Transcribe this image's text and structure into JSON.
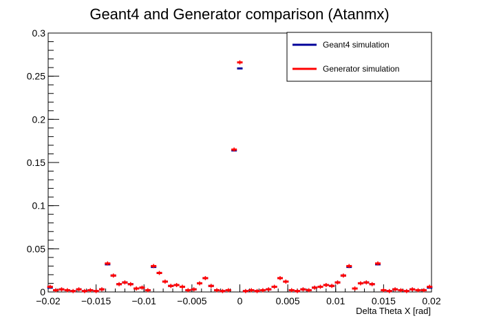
{
  "chart_data": {
    "type": "scatter",
    "title": "Geant4 and Generator comparison (Atanmx)",
    "xlabel": "Delta Theta X [rad]",
    "ylabel": "",
    "xlim": [
      -0.02,
      0.02
    ],
    "ylim": [
      0,
      0.3
    ],
    "x_ticks": [
      "−0.02",
      "−0.015",
      "−0.01",
      "−0.005",
      "0",
      "0.005",
      "0.01",
      "0.015",
      "0.02"
    ],
    "y_ticks": [
      "0",
      "0.05",
      "0.1",
      "0.15",
      "0.2",
      "0.25",
      "0.3"
    ],
    "grid": false,
    "legend_position": "top-right",
    "series": [
      {
        "name": "Geant4 simulation",
        "color": "#000099",
        "x": [
          -0.0198,
          -0.0192,
          -0.0186,
          -0.018,
          -0.0174,
          -0.0168,
          -0.0162,
          -0.0156,
          -0.015,
          -0.0144,
          -0.0138,
          -0.0132,
          -0.0126,
          -0.012,
          -0.0114,
          -0.0108,
          -0.0102,
          -0.0096,
          -0.009,
          -0.0084,
          -0.0078,
          -0.0072,
          -0.0066,
          -0.006,
          -0.0054,
          -0.0048,
          -0.0042,
          -0.0036,
          -0.003,
          -0.0024,
          -0.0018,
          -0.0012,
          -0.0006,
          0.0,
          0.0006,
          0.0012,
          0.0018,
          0.0024,
          0.003,
          0.0036,
          0.0042,
          0.0048,
          0.0054,
          0.006,
          0.0066,
          0.0072,
          0.0078,
          0.0084,
          0.009,
          0.0096,
          0.0102,
          0.0108,
          0.0114,
          0.012,
          0.0126,
          0.0132,
          0.0138,
          0.0144,
          0.015,
          0.0156,
          0.0162,
          0.0168,
          0.0174,
          0.018,
          0.0186,
          0.0192,
          0.0198
        ],
        "y": [
          0.005,
          0.002,
          0.003,
          0.002,
          0.001,
          0.003,
          0.001,
          0.002,
          0.001,
          0.003,
          0.032,
          0.019,
          0.009,
          0.011,
          0.009,
          0.004,
          0.005,
          0.002,
          0.029,
          0.022,
          0.012,
          0.007,
          0.008,
          0.006,
          0.002,
          0.003,
          0.01,
          0.016,
          0.007,
          0.002,
          0.001,
          0.002,
          0.164,
          0.259,
          0.001,
          0.002,
          0.001,
          0.002,
          0.003,
          0.006,
          0.016,
          0.012,
          0.002,
          0.001,
          0.003,
          0.002,
          0.005,
          0.006,
          0.008,
          0.007,
          0.011,
          0.019,
          0.029,
          0.004,
          0.01,
          0.011,
          0.009,
          0.032,
          0.002,
          0.001,
          0.003,
          0.002,
          0.001,
          0.003,
          0.002,
          0.002,
          0.005
        ]
      },
      {
        "name": "Generator simulation",
        "color": "#ff0000",
        "x": [
          -0.0198,
          -0.0192,
          -0.0186,
          -0.018,
          -0.0174,
          -0.0168,
          -0.0162,
          -0.0156,
          -0.015,
          -0.0144,
          -0.0138,
          -0.0132,
          -0.0126,
          -0.012,
          -0.0114,
          -0.0108,
          -0.0102,
          -0.0096,
          -0.009,
          -0.0084,
          -0.0078,
          -0.0072,
          -0.0066,
          -0.006,
          -0.0054,
          -0.0048,
          -0.0042,
          -0.0036,
          -0.003,
          -0.0024,
          -0.0018,
          -0.0012,
          -0.0006,
          0.0,
          0.0006,
          0.0012,
          0.0018,
          0.0024,
          0.003,
          0.0036,
          0.0042,
          0.0048,
          0.0054,
          0.006,
          0.0066,
          0.0072,
          0.0078,
          0.0084,
          0.009,
          0.0096,
          0.0102,
          0.0108,
          0.0114,
          0.012,
          0.0126,
          0.0132,
          0.0138,
          0.0144,
          0.015,
          0.0156,
          0.0162,
          0.0168,
          0.0174,
          0.018,
          0.0186,
          0.0192,
          0.0198
        ],
        "y": [
          0.006,
          0.002,
          0.003,
          0.002,
          0.001,
          0.003,
          0.001,
          0.002,
          0.001,
          0.003,
          0.033,
          0.019,
          0.009,
          0.011,
          0.009,
          0.004,
          0.005,
          0.002,
          0.03,
          0.022,
          0.012,
          0.007,
          0.008,
          0.006,
          0.002,
          0.003,
          0.01,
          0.016,
          0.007,
          0.002,
          0.001,
          0.002,
          0.165,
          0.266,
          0.001,
          0.002,
          0.001,
          0.002,
          0.003,
          0.006,
          0.016,
          0.012,
          0.002,
          0.001,
          0.003,
          0.002,
          0.005,
          0.006,
          0.008,
          0.007,
          0.011,
          0.019,
          0.03,
          0.004,
          0.01,
          0.011,
          0.009,
          0.033,
          0.002,
          0.001,
          0.003,
          0.002,
          0.001,
          0.003,
          0.002,
          0.002,
          0.006
        ]
      }
    ]
  }
}
